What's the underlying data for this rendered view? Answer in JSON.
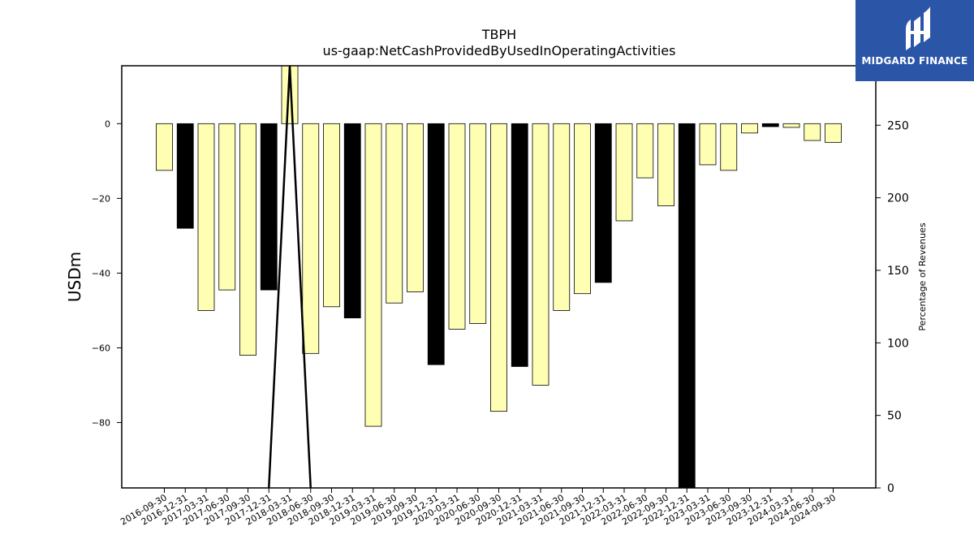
{
  "chart_data": {
    "type": "bar",
    "title": "TBPH",
    "subtitle": "us-gaap:NetCashProvidedByUsedInOperatingActivities",
    "ylabel": "USDm",
    "y2label": "Percentage of Revenues",
    "ylim": [
      -97.5,
      15.5
    ],
    "y2lim": [
      0,
      291
    ],
    "yticks": [
      0,
      -20,
      -40,
      -60,
      -80
    ],
    "y2ticks": [
      0,
      50,
      100,
      150,
      200,
      250
    ],
    "categories": [
      "2016-09-30",
      "2016-12-31",
      "2017-03-31",
      "2017-06-30",
      "2017-09-30",
      "2017-12-31",
      "2018-03-31",
      "2018-06-30",
      "2018-09-30",
      "2018-12-31",
      "2019-03-31",
      "2019-06-30",
      "2019-09-30",
      "2019-12-31",
      "2020-03-31",
      "2020-06-30",
      "2020-09-30",
      "2020-12-31",
      "2021-03-31",
      "2021-06-30",
      "2021-09-30",
      "2021-12-31",
      "2022-03-31",
      "2022-06-30",
      "2022-09-30",
      "2022-12-31",
      "2023-03-31",
      "2023-06-30",
      "2023-09-30",
      "2023-12-31",
      "2024-03-31",
      "2024-06-30",
      "2024-09-30"
    ],
    "bars": [
      {
        "category": "2016-09-30",
        "value": -12.5,
        "color": "#ffffb3"
      },
      {
        "category": "2016-12-31",
        "value": -28.0,
        "color": "#000000"
      },
      {
        "category": "2017-03-31",
        "value": -50.0,
        "color": "#ffffb3"
      },
      {
        "category": "2017-06-30",
        "value": -44.5,
        "color": "#ffffb3"
      },
      {
        "category": "2017-09-30",
        "value": -62.0,
        "color": "#ffffb3"
      },
      {
        "category": "2017-12-31",
        "value": -44.5,
        "color": "#000000"
      },
      {
        "category": "2018-03-31",
        "value": 15.5,
        "color": "#ffffb3"
      },
      {
        "category": "2018-06-30",
        "value": -61.5,
        "color": "#ffffb3"
      },
      {
        "category": "2018-09-30",
        "value": -49.0,
        "color": "#ffffb3"
      },
      {
        "category": "2018-12-31",
        "value": -52.0,
        "color": "#000000"
      },
      {
        "category": "2019-03-31",
        "value": -81.0,
        "color": "#ffffb3"
      },
      {
        "category": "2019-06-30",
        "value": -48.0,
        "color": "#ffffb3"
      },
      {
        "category": "2019-09-30",
        "value": -45.0,
        "color": "#ffffb3"
      },
      {
        "category": "2019-12-31",
        "value": -64.5,
        "color": "#000000"
      },
      {
        "category": "2020-03-31",
        "value": -55.0,
        "color": "#ffffb3"
      },
      {
        "category": "2020-06-30",
        "value": -53.5,
        "color": "#ffffb3"
      },
      {
        "category": "2020-09-30",
        "value": -77.0,
        "color": "#ffffb3"
      },
      {
        "category": "2020-12-31",
        "value": -65.0,
        "color": "#000000"
      },
      {
        "category": "2021-03-31",
        "value": -70.0,
        "color": "#ffffb3"
      },
      {
        "category": "2021-06-30",
        "value": -50.0,
        "color": "#ffffb3"
      },
      {
        "category": "2021-09-30",
        "value": -45.5,
        "color": "#ffffb3"
      },
      {
        "category": "2021-12-31",
        "value": -42.5,
        "color": "#000000"
      },
      {
        "category": "2022-03-31",
        "value": -26.0,
        "color": "#ffffb3"
      },
      {
        "category": "2022-06-30",
        "value": -14.5,
        "color": "#ffffb3"
      },
      {
        "category": "2022-09-30",
        "value": -22.0,
        "color": "#ffffb3"
      },
      {
        "category": "2022-12-31",
        "value": -97.5,
        "color": "#000000"
      },
      {
        "category": "2023-03-31",
        "value": -11.0,
        "color": "#ffffb3"
      },
      {
        "category": "2023-06-30",
        "value": -12.5,
        "color": "#ffffb3"
      },
      {
        "category": "2023-09-30",
        "value": -2.5,
        "color": "#ffffb3"
      },
      {
        "category": "2023-12-31",
        "value": -0.8,
        "color": "#000000"
      },
      {
        "category": "2024-03-31",
        "value": -1.0,
        "color": "#ffffb3"
      },
      {
        "category": "2024-06-30",
        "value": -4.5,
        "color": "#ffffb3"
      },
      {
        "category": "2024-09-30",
        "value": -5.0,
        "color": "#ffffb3"
      }
    ],
    "secondary_series": {
      "type": "line",
      "color": "#000000",
      "points": [
        {
          "category": "2017-12-31",
          "value": 0
        },
        {
          "category": "2018-03-31",
          "value": 291
        },
        {
          "category": "2018-06-30",
          "value": 0
        }
      ]
    },
    "grid": false,
    "legend": "none"
  },
  "logo": {
    "text": "MIDGARD FINANCE",
    "background": "#2b56a8"
  }
}
